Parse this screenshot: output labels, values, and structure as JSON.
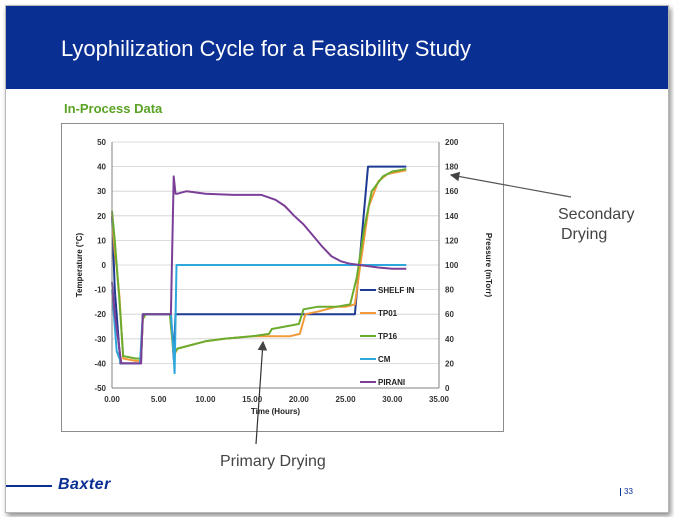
{
  "slide": {
    "title": "Lyophilization Cycle for a Feasibility Study",
    "subtitle": "In-Process Data",
    "page_number": "33",
    "logo_text": "Baxter",
    "colors": {
      "banner": "#0a2f93",
      "subtitle": "#5aa325",
      "logo": "#0a2f93"
    }
  },
  "annotations": {
    "secondary_drying_line1": "Secondary",
    "secondary_drying_line2": "Drying",
    "primary_drying": "Primary Drying"
  },
  "chart_data": {
    "type": "line",
    "xlabel": "Time (Hours)",
    "ylabel_left": "Temperature (°C)",
    "ylabel_right": "Pressure (mTorr)",
    "xlim": [
      0,
      35
    ],
    "ylim_left": [
      -50,
      50
    ],
    "ylim_right": [
      0,
      200
    ],
    "x_ticks": [
      "0.00",
      "5.00",
      "10.00",
      "15.00",
      "20.00",
      "25.00",
      "30.00",
      "35.00"
    ],
    "y_left_ticks": [
      "-50",
      "-40",
      "-30",
      "-20",
      "-10",
      "0",
      "10",
      "20",
      "30",
      "40",
      "50"
    ],
    "y_right_ticks": [
      "0",
      "20",
      "40",
      "60",
      "80",
      "100",
      "120",
      "140",
      "160",
      "180",
      "200"
    ],
    "grid": "horizontal",
    "legend_position": "right",
    "series": [
      {
        "name": "SHELF IN",
        "axis": "left",
        "color": "#1f3a93",
        "x": [
          0,
          0.3,
          0.9,
          1,
          3.1,
          3.3,
          6.3,
          6.6,
          6.8,
          26,
          27.4,
          31.5
        ],
        "y": [
          20,
          -10,
          -40,
          -40,
          -40,
          -20,
          -20,
          -38,
          -20,
          -20,
          40,
          40
        ]
      },
      {
        "name": "TP01",
        "axis": "left",
        "color": "#f29a3a",
        "x": [
          0,
          0.3,
          0.5,
          0.8,
          1.2,
          2.5,
          3.1,
          3.3,
          3.6,
          6.2,
          6.6,
          7,
          10,
          12,
          15,
          17,
          19,
          20.1,
          20.7,
          22,
          24,
          25,
          26,
          26.5,
          27.5,
          28.5,
          29.5,
          31.5
        ],
        "y": [
          21,
          5,
          -1,
          -13,
          -38,
          -39,
          -39,
          -22,
          -20,
          -20,
          -37,
          -34,
          -31,
          -30,
          -29,
          -29,
          -29,
          -28,
          -20,
          -19,
          -17,
          -17,
          -16,
          -2,
          24,
          34,
          37,
          38.5
        ]
      },
      {
        "name": "TP16",
        "axis": "left",
        "color": "#6aac2e",
        "x": [
          0,
          0.3,
          0.5,
          0.8,
          1.2,
          2.5,
          3.1,
          3.3,
          3.6,
          6.2,
          6.6,
          7,
          10,
          12,
          15,
          16.8,
          17.1,
          20,
          20.5,
          22,
          24,
          25.5,
          26.2,
          27,
          27.8,
          29,
          30,
          31.5
        ],
        "y": [
          22,
          10,
          0,
          -15,
          -37,
          -38,
          -38,
          -22,
          -20,
          -20,
          -36,
          -34,
          -31,
          -30,
          -29,
          -28,
          -26,
          -24,
          -18,
          -17,
          -17,
          -16,
          -5,
          15,
          30,
          36,
          38,
          39
        ]
      },
      {
        "name": "CM",
        "axis": "right",
        "color": "#2ea7dc",
        "x": [
          0,
          0.5,
          1,
          3,
          3.3,
          6.3,
          6.5,
          6.7,
          6.9,
          10,
          15,
          20,
          25,
          31.5
        ],
        "y": [
          80,
          30,
          20,
          20,
          60,
          60,
          40,
          12,
          100,
          100,
          100,
          100,
          100,
          100
        ]
      },
      {
        "name": "PIRANI",
        "axis": "right",
        "color": "#7b3f98",
        "x": [
          0,
          0.3,
          1,
          3.1,
          3.3,
          6.3,
          6.6,
          6.8,
          7,
          8,
          10,
          13,
          16,
          17.5,
          18.5,
          19.5,
          20.5,
          21.5,
          22.5,
          23.5,
          24.5,
          25.5,
          26.5,
          27.5,
          28.5,
          30,
          31.5
        ],
        "y": [
          86,
          60,
          20,
          20,
          60,
          60,
          172,
          158,
          158,
          160,
          158,
          157,
          157,
          153,
          148,
          140,
          133,
          124,
          115,
          107,
          103,
          101,
          100,
          99,
          98,
          97,
          97
        ]
      }
    ]
  }
}
